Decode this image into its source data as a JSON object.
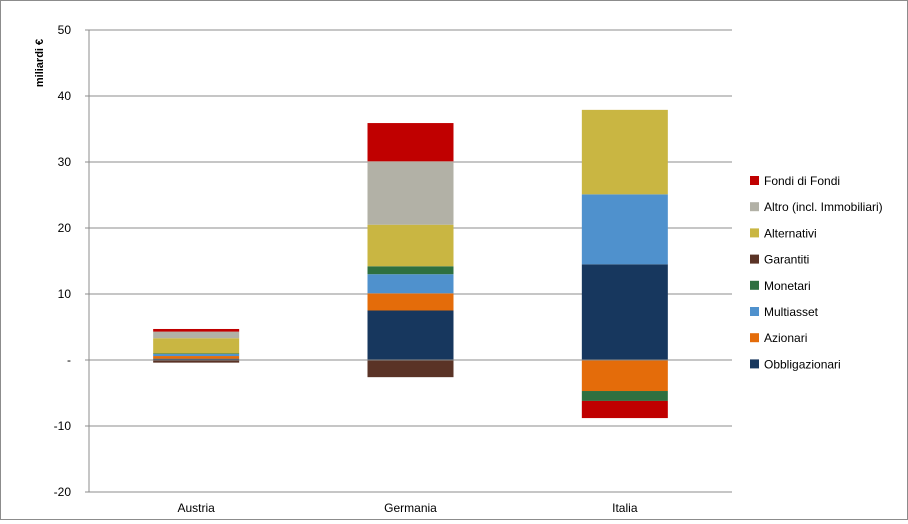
{
  "chart_data": {
    "type": "bar",
    "stacked": true,
    "title": "",
    "xlabel": "",
    "ylabel": "miliardi €",
    "ylim": [
      -20,
      50
    ],
    "yticks": [
      -20,
      -10,
      0,
      10,
      20,
      30,
      40,
      50
    ],
    "ytick_labels": [
      "-20",
      "-10",
      "-",
      "10",
      "20",
      "30",
      "40",
      "50"
    ],
    "grid": true,
    "legend_position": "right",
    "categories": [
      "Austria",
      "Germania",
      "Italia"
    ],
    "series": [
      {
        "name": "Obbligazionari",
        "color": "#17375e",
        "values": [
          0.2,
          7.5,
          14.5
        ]
      },
      {
        "name": "Azionari",
        "color": "#e46c0a",
        "values": [
          0.4,
          2.6,
          -4.7
        ]
      },
      {
        "name": "Multiasset",
        "color": "#4f91cd",
        "values": [
          0.3,
          2.9,
          10.6
        ]
      },
      {
        "name": "Monetari",
        "color": "#2e7040",
        "values": [
          0.1,
          1.2,
          -1.5
        ]
      },
      {
        "name": "Garantiti",
        "color": "#5a3326",
        "values": [
          -0.4,
          -2.6,
          0
        ]
      },
      {
        "name": "Alternativi",
        "color": "#c9b642",
        "values": [
          2.3,
          6.3,
          12.8
        ]
      },
      {
        "name": "Altro (incl. Immobiliari)",
        "color": "#b2b1a6",
        "values": [
          1.0,
          9.6,
          0
        ]
      },
      {
        "name": "Fondi di Fondi",
        "color": "#c00000",
        "values": [
          0.4,
          5.8,
          -2.6
        ]
      }
    ]
  }
}
